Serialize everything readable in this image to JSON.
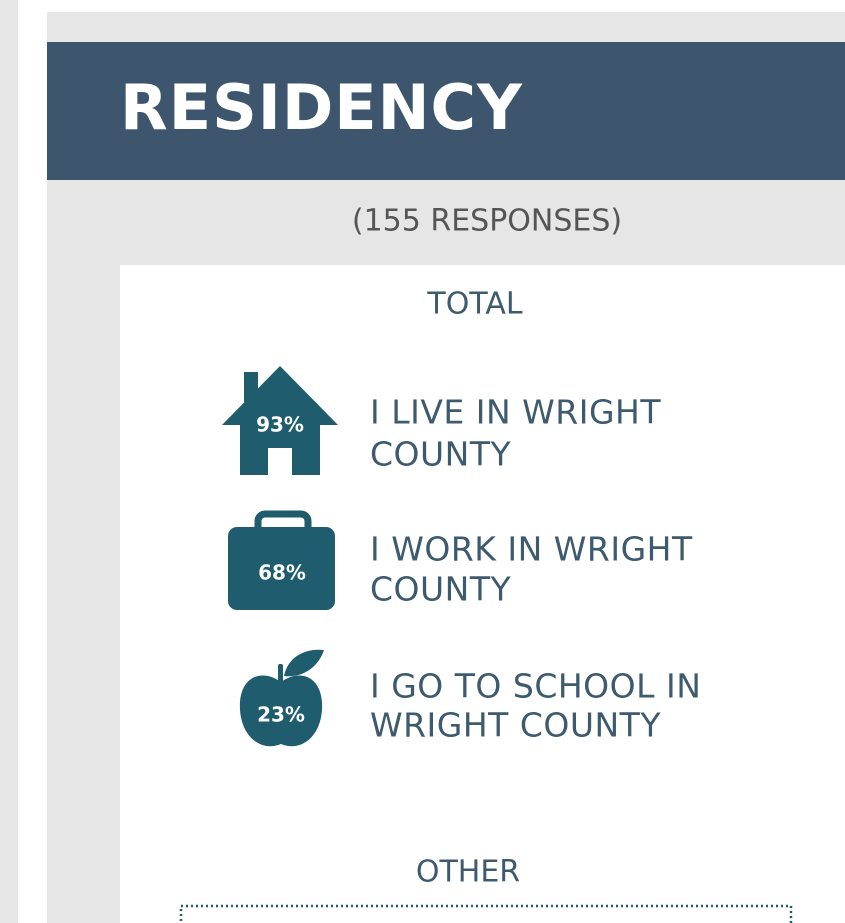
{
  "header": {
    "title": "RESIDENCY",
    "subtitle": "(155 RESPONSES)"
  },
  "total": {
    "heading": "TOTAL",
    "items": [
      {
        "value": "93%",
        "label": [
          "I LIVE IN WRIGHT",
          "COUNTY"
        ]
      },
      {
        "value": "68%",
        "label": [
          "I WORK IN WRIGHT",
          "COUNTY"
        ]
      },
      {
        "value": "23%",
        "label": [
          "I GO TO SCHOOL IN",
          "WRIGHT COUNTY"
        ]
      }
    ]
  },
  "other": {
    "heading": "OTHER"
  }
}
